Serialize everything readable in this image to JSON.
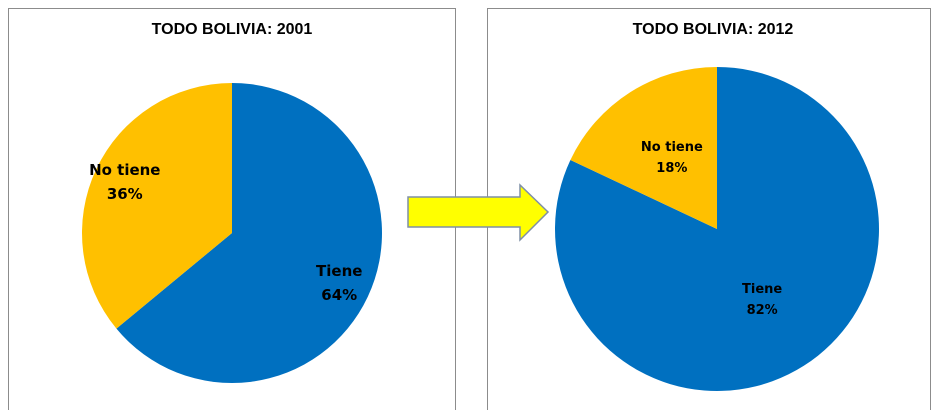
{
  "chart_data": [
    {
      "type": "pie",
      "title": "TODO BOLIVIA: 2001",
      "categories": [
        "Tiene",
        "No tiene"
      ],
      "values": [
        64,
        36
      ],
      "value_labels": [
        "64%",
        "36%"
      ],
      "colors": [
        "#0070c0",
        "#ffc000"
      ]
    },
    {
      "type": "pie",
      "title": "TODO BOLIVIA: 2012",
      "categories": [
        "Tiene",
        "No tiene"
      ],
      "values": [
        82,
        18
      ],
      "value_labels": [
        "82%",
        "18%"
      ],
      "colors": [
        "#0070c0",
        "#ffc000"
      ]
    }
  ]
}
